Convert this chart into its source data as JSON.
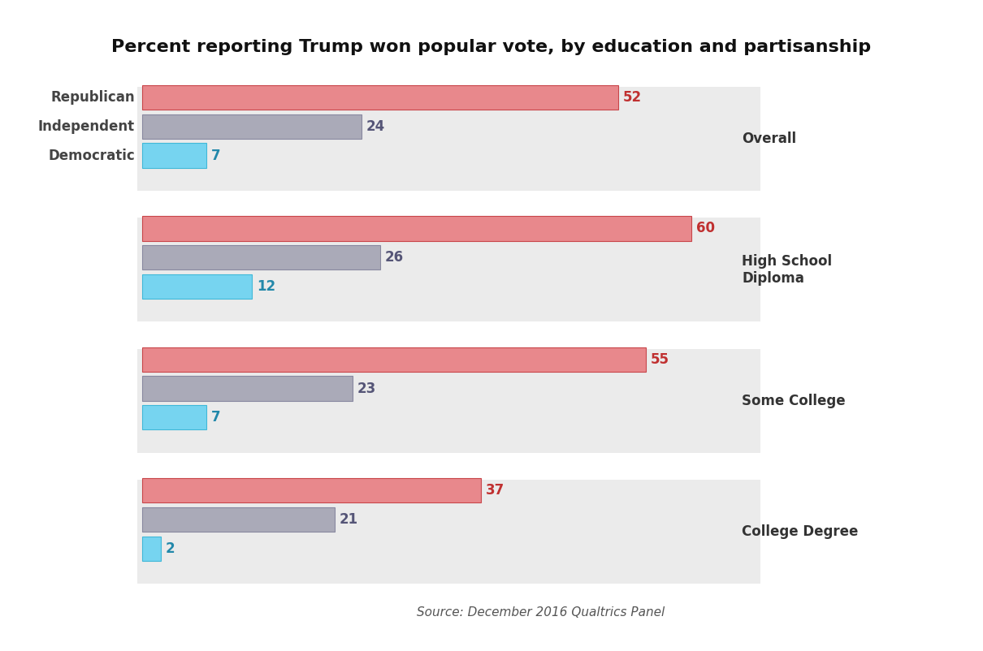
{
  "title": "Percent reporting Trump won popular vote, by education and partisanship",
  "source": "Source: December 2016 Qualtrics Panel",
  "groups": [
    {
      "label": "Overall",
      "republican": 52,
      "independent": 24,
      "democratic": 7
    },
    {
      "label": "High School\nDiploma",
      "republican": 60,
      "independent": 26,
      "democratic": 12
    },
    {
      "label": "Some College",
      "republican": 55,
      "independent": 23,
      "democratic": 7
    },
    {
      "label": "College Degree",
      "republican": 37,
      "independent": 21,
      "democratic": 2
    }
  ],
  "bar_labels": [
    "Republican",
    "Independent",
    "Democratic"
  ],
  "bar_keys": [
    "republican",
    "independent",
    "democratic"
  ],
  "colors": {
    "republican": "#E8888C",
    "independent": "#AAAAB8",
    "democratic": "#76D4F0"
  },
  "edge_colors": {
    "republican": "#C8464A",
    "independent": "#8888A0",
    "democratic": "#40B8D8"
  },
  "value_colors": {
    "republican": "#C03030",
    "independent": "#5555770",
    "democratic": "#2288AA"
  },
  "background_color": "#FFFFFF",
  "panel_color": "#EBEBEB",
  "title_fontsize": 16,
  "label_fontsize": 12,
  "value_fontsize": 12,
  "source_fontsize": 11
}
